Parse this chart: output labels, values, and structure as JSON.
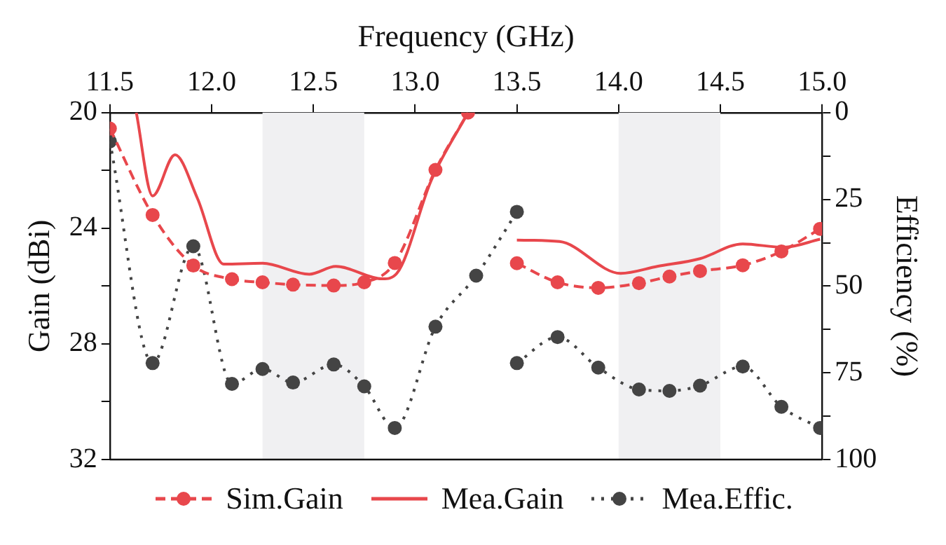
{
  "chart_data": {
    "type": "line",
    "xlabel": "Frequency (GHz)",
    "ylabel": "Gain (dBi)",
    "y2label": "Efficiency (%)",
    "xlim": [
      11.5,
      15.0
    ],
    "xticks": [
      {
        "value": 11.5,
        "label": "11.5"
      },
      {
        "value": 12,
        "label": "12.0"
      },
      {
        "value": 12.5,
        "label": "12.5"
      },
      {
        "value": 13,
        "label": "13.0"
      },
      {
        "value": 13.5,
        "label": "13.5"
      },
      {
        "value": 14,
        "label": "14.0"
      },
      {
        "value": 14.5,
        "label": "14.5"
      },
      {
        "value": 15,
        "label": "15.0"
      }
    ],
    "ylim": [
      32,
      20
    ],
    "yticks": [
      20,
      {
        "value": 22,
        "label": null
      },
      24,
      {
        "value": 26,
        "label": null
      },
      28,
      {
        "value": 30,
        "label": null
      },
      32
    ],
    "y2lim": [
      100,
      0
    ],
    "y2ticks": [
      0,
      {
        "value": 12.5,
        "label": null
      },
      25,
      {
        "value": 37.5,
        "label": null
      },
      50,
      {
        "value": 62.5,
        "label": null
      },
      75,
      {
        "value": 87.5,
        "label": null
      },
      100
    ],
    "grid": false,
    "legend": "bottom",
    "bands": [
      {
        "axis": "x",
        "from": 12.25,
        "to": 12.75,
        "color": "#f0f0f2"
      },
      {
        "axis": "x",
        "from": 14.0,
        "to": 14.5,
        "color": "#f0f0f2"
      }
    ],
    "series": [
      {
        "name": "Sim.Gain",
        "color": "#e8474c",
        "line_style": "dashed",
        "marker": "circle",
        "x": [
          11.5,
          11.71,
          11.91,
          12.1,
          12.25,
          12.4,
          12.6,
          12.75,
          12.9,
          13.1,
          13.26,
          null,
          13.5,
          13.7,
          13.9,
          14.1,
          14.25,
          14.4,
          14.61,
          14.8,
          14.99
        ],
        "values": [
          20.55,
          23.54,
          25.29,
          25.76,
          25.87,
          25.95,
          25.98,
          25.87,
          25.2,
          21.98,
          20,
          null,
          25.21,
          25.87,
          26.06,
          25.9,
          25.67,
          25.48,
          25.28,
          24.8,
          24.02
        ]
      },
      {
        "name": "Mea.Gain",
        "color": "#e8474c",
        "line_style": "solid",
        "marker": "none",
        "x": [
          11.63,
          11.71,
          11.82,
          11.93,
          12.06,
          12.25,
          12.48,
          12.61,
          12.84,
          12.91,
          13.08,
          13.26,
          null,
          13.5,
          13.71,
          14.01,
          14.19,
          14.4,
          14.61,
          14.81,
          14.99
        ],
        "values": [
          20,
          22.88,
          21.46,
          22.96,
          25.24,
          25.21,
          25.59,
          25.32,
          25.75,
          25.56,
          22.33,
          20,
          null,
          24.41,
          24.46,
          25.56,
          25.32,
          25.05,
          24.54,
          24.66,
          24.38
        ]
      },
      {
        "name": "Mea.Effic.",
        "color": "#444444",
        "line_style": "dotted",
        "marker": "circle",
        "axis": "y2",
        "x": [
          11.5,
          11.71,
          11.91,
          12.1,
          12.25,
          12.4,
          12.6,
          12.75,
          12.9,
          13.1,
          13.3,
          13.5,
          null,
          13.5,
          13.7,
          13.9,
          14.1,
          14.25,
          14.4,
          14.61,
          14.8,
          14.99
        ],
        "values": [
          8.3,
          72.2,
          38.5,
          78.2,
          73.9,
          77.8,
          72.6,
          78.9,
          90.9,
          61.7,
          47.0,
          28.6,
          null,
          72.2,
          64.7,
          73.5,
          79.8,
          80.2,
          78.7,
          73.2,
          84.8,
          90.9
        ]
      }
    ]
  }
}
